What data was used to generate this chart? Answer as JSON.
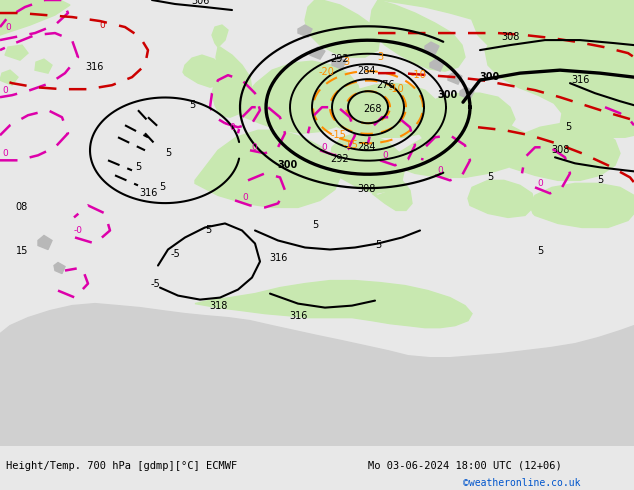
{
  "title_left": "Height/Temp. 700 hPa [gdmp][°C] ECMWF",
  "title_right": "Mo 03-06-2024 18:00 UTC (12+06)",
  "credit": "©weatheronline.co.uk",
  "sea_color": "#d0d0d0",
  "land_green": "#c8e8b0",
  "land_gray": "#b8b8b8",
  "height_color": "#000000",
  "temp_orange": "#ff8c00",
  "temp_magenta": "#dd00aa",
  "temp_red": "#cc0000",
  "bottom_bar": "#e8e8e8"
}
